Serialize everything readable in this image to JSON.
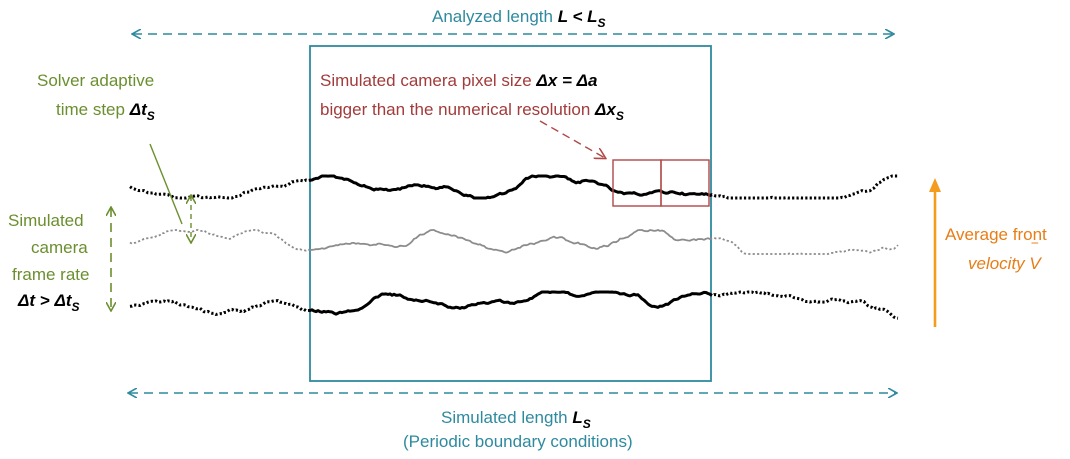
{
  "colors": {
    "teal": "#2e8a9e",
    "red": "#b04848",
    "green": "#6b8f2f",
    "orange": "#f39c1e",
    "front": "#000000",
    "middle_front": "#8c8c8c"
  },
  "analyzed_length": {
    "text": "Analyzed length ",
    "symbol": "L < L",
    "sub": "S"
  },
  "pixel_size": {
    "line1_text": "Simulated camera pixel size ",
    "line1_symbol": "Δx = Δa",
    "line2_text": "bigger than the numerical resolution ",
    "line2_symbol": "Δx",
    "line2_sub": "S"
  },
  "solver": {
    "line1": "Solver adaptive",
    "line2_text": "time step ",
    "line2_symbol": "Δt",
    "line2_sub": "S"
  },
  "frame_rate": {
    "line1": "Simulated",
    "line2": "camera",
    "line3": "frame rate",
    "line4_symbol": "Δt > Δt",
    "line4_sub": "S"
  },
  "velocity": {
    "line1": "Average front",
    "line2_text": "velocity ",
    "line2_symbol": "V",
    "bar_glyph": "‾"
  },
  "simulated_length": {
    "line1_text": "Simulated length ",
    "line1_symbol": "L",
    "line1_sub": "S",
    "line2": "(Periodic boundary conditions)"
  }
}
